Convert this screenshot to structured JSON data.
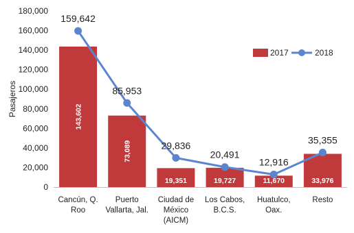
{
  "chart_data": {
    "type": "bar",
    "categories": [
      [
        "Cancún, Q.",
        "Roo"
      ],
      [
        "Puerto",
        "Vallarta, Jal."
      ],
      [
        "Ciudad de",
        "México",
        "(AICM)"
      ],
      [
        "Los Cabos,",
        "B.C.S."
      ],
      [
        "Huatulco,",
        "Oax."
      ],
      [
        "Resto"
      ]
    ],
    "series": [
      {
        "name": "2017",
        "type": "bar",
        "color": "#c0393b",
        "values": [
          143602,
          73089,
          19351,
          19727,
          11670,
          33976
        ],
        "labels": [
          "143,602",
          "73,089",
          "19,351",
          "19,727",
          "11,670",
          "33,976"
        ]
      },
      {
        "name": "2018",
        "type": "line",
        "color": "#5b86cf",
        "values": [
          159642,
          85953,
          29836,
          20491,
          12916,
          35355
        ],
        "labels": [
          "159,642",
          "85,953",
          "29,836",
          "20,491",
          "12,916",
          "35,355"
        ]
      }
    ],
    "ylabel": "Pasajeros",
    "ylim": [
      0,
      180000
    ],
    "yticks": [
      "0",
      "20,000",
      "40,000",
      "60,000",
      "80,000",
      "100,000",
      "120,000",
      "140,000",
      "160,000",
      "180,000"
    ],
    "grid": false,
    "legend_position": "top-right"
  }
}
